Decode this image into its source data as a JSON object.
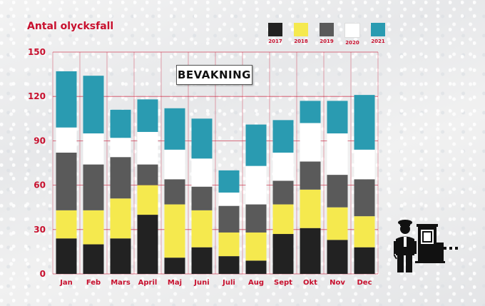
{
  "chart_data": {
    "type": "bar",
    "stacked": true,
    "annotation": "BEVAKNING",
    "ylabel": "Antal olycksfall",
    "xlabel": "",
    "ylim": [
      0,
      150
    ],
    "yticks": [
      0,
      30,
      60,
      90,
      120,
      150
    ],
    "grid": true,
    "legend_position": "top-right",
    "categories": [
      "Jan",
      "Feb",
      "Mars",
      "April",
      "Maj",
      "Juni",
      "Juli",
      "Aug",
      "Sept",
      "Okt",
      "Nov",
      "Dec"
    ],
    "series": [
      {
        "name": "2017",
        "color": "#222222",
        "values": [
          24,
          20,
          24,
          40,
          11,
          18,
          12,
          9,
          27,
          31,
          23,
          18
        ]
      },
      {
        "name": "2018",
        "color": "#f5e94e",
        "values": [
          19,
          23,
          27,
          20,
          36,
          25,
          16,
          19,
          20,
          26,
          22,
          21
        ]
      },
      {
        "name": "2019",
        "color": "#5a5a5a",
        "values": [
          39,
          31,
          28,
          14,
          17,
          16,
          18,
          19,
          16,
          19,
          22,
          25
        ]
      },
      {
        "name": "2020",
        "color": "#ffffff",
        "values": [
          17,
          21,
          13,
          22,
          20,
          19,
          9,
          26,
          19,
          26,
          28,
          20
        ]
      },
      {
        "name": "2021",
        "color": "#2a9bb1",
        "values": [
          38,
          39,
          19,
          22,
          28,
          27,
          15,
          28,
          22,
          15,
          22,
          37
        ]
      }
    ]
  },
  "icons": {
    "guard": "security-guard-at-barrier-icon"
  }
}
